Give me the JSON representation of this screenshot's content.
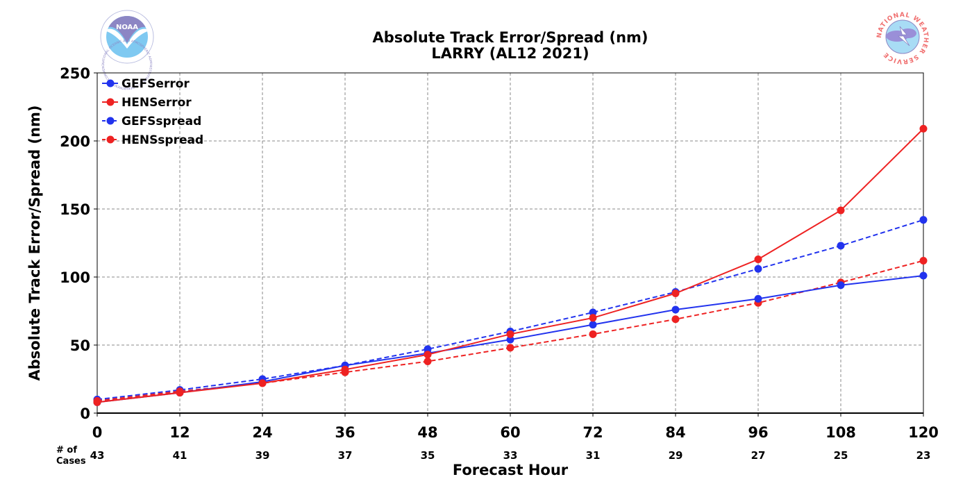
{
  "chart_data": {
    "type": "line",
    "title": "Absolute Track Error/Spread (nm)",
    "subtitle": "LARRY (AL12 2021)",
    "xlabel": "Forecast Hour",
    "ylabel": "Absolute Track Error/Spread (nm)",
    "x": [
      0,
      12,
      24,
      36,
      48,
      60,
      72,
      84,
      96,
      108,
      120
    ],
    "xlim": [
      0,
      120
    ],
    "ylim": [
      0,
      250
    ],
    "yticks": [
      0,
      50,
      100,
      150,
      200,
      250
    ],
    "grid": true,
    "legend_position": "top-left",
    "cases_label": [
      "# of",
      "Cases"
    ],
    "cases": [
      43,
      41,
      39,
      37,
      35,
      33,
      31,
      29,
      27,
      25,
      23
    ],
    "series": [
      {
        "name": "GEFSerror",
        "color": "#2233ee",
        "dashed": false,
        "values": [
          8,
          15,
          23,
          35,
          44,
          54,
          65,
          76,
          84,
          94,
          101
        ]
      },
      {
        "name": "HENSerror",
        "color": "#ee2222",
        "dashed": false,
        "values": [
          8,
          15,
          22,
          32,
          43,
          58,
          70,
          88,
          113,
          149,
          209
        ]
      },
      {
        "name": "GEFSspread",
        "color": "#2233ee",
        "dashed": true,
        "values": [
          10,
          17,
          25,
          35,
          47,
          60,
          74,
          89,
          106,
          123,
          142
        ]
      },
      {
        "name": "HENSspread",
        "color": "#ee2222",
        "dashed": true,
        "values": [
          9,
          16,
          22,
          30,
          38,
          48,
          58,
          69,
          81,
          96,
          112
        ]
      }
    ]
  },
  "logos": {
    "left": {
      "text": "NOAA",
      "ring_text": "NATIONAL OCEANIC AND ATMOSPHERIC ADMINISTRATION · U.S. DEPARTMENT OF COMMERCE"
    },
    "right": {
      "ring_text": "NATIONAL WEATHER SERVICE"
    }
  }
}
